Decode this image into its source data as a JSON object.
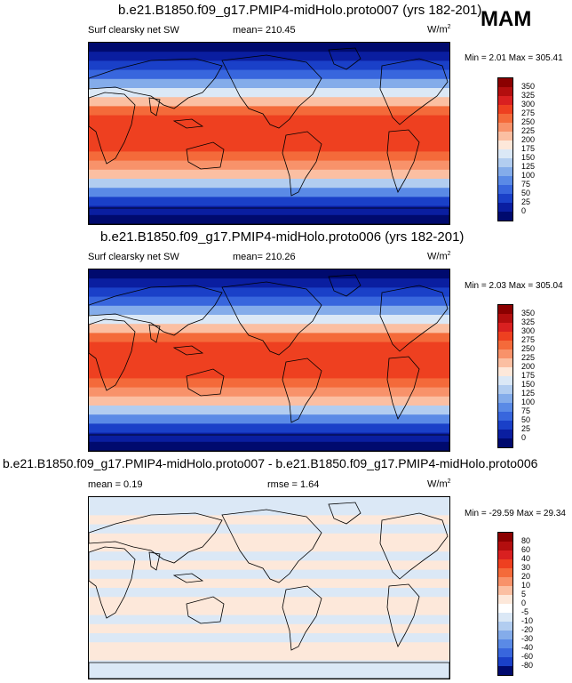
{
  "season": "MAM",
  "panels": [
    {
      "title": "b.e21.B1850.f09_g17.PMIP4-midHolo.proto007 (yrs 182-201)",
      "left_label": "Surf clearsky net SW",
      "center_label": "mean= 210.45",
      "units": "W/m",
      "units_sup": "2",
      "minmax": "Min =   2.01 Max = 305.41",
      "colorbar_ticks": [
        "350",
        "325",
        "300",
        "275",
        "250",
        "225",
        "200",
        "175",
        "150",
        "125",
        "100",
        "75",
        "50",
        "25",
        "0"
      ],
      "colorbar_colors": [
        "#8b0000",
        "#b30e0e",
        "#d92020",
        "#ee4020",
        "#f46a3a",
        "#f8926a",
        "#fbbfa2",
        "#fde8da",
        "#dbe8f6",
        "#b2cdf0",
        "#84acea",
        "#5a8ae6",
        "#3866dd",
        "#1a40c8",
        "#0a1ea0",
        "#000a6e"
      ],
      "zonal_colors": [
        "#000a6e",
        "#0a1ea0",
        "#1a40c8",
        "#3866dd",
        "#84acea",
        "#dbe8f6",
        "#fbbfa2",
        "#f46a3a",
        "#ee4020",
        "#ee4020",
        "#ee4020",
        "#ee4020",
        "#f46a3a",
        "#f8926a",
        "#fbbfa2",
        "#b2cdf0",
        "#5a8ae6",
        "#1a40c8",
        "#0a1ea0",
        "#000a6e"
      ]
    },
    {
      "title": "b.e21.B1850.f09_g17.PMIP4-midHolo.proto006 (yrs 182-201)",
      "left_label": "Surf clearsky net SW",
      "center_label": "mean= 210.26",
      "units": "W/m",
      "units_sup": "2",
      "minmax": "Min =   2.03 Max = 305.04",
      "colorbar_ticks": [
        "350",
        "325",
        "300",
        "275",
        "250",
        "225",
        "200",
        "175",
        "150",
        "125",
        "100",
        "75",
        "50",
        "25",
        "0"
      ],
      "colorbar_colors": [
        "#8b0000",
        "#b30e0e",
        "#d92020",
        "#ee4020",
        "#f46a3a",
        "#f8926a",
        "#fbbfa2",
        "#fde8da",
        "#dbe8f6",
        "#b2cdf0",
        "#84acea",
        "#5a8ae6",
        "#3866dd",
        "#1a40c8",
        "#0a1ea0",
        "#000a6e"
      ],
      "zonal_colors": [
        "#000a6e",
        "#0a1ea0",
        "#1a40c8",
        "#3866dd",
        "#84acea",
        "#dbe8f6",
        "#fbbfa2",
        "#f46a3a",
        "#ee4020",
        "#ee4020",
        "#ee4020",
        "#ee4020",
        "#f46a3a",
        "#f8926a",
        "#fbbfa2",
        "#b2cdf0",
        "#5a8ae6",
        "#1a40c8",
        "#0a1ea0",
        "#000a6e"
      ]
    },
    {
      "title": "b.e21.B1850.f09_g17.PMIP4-midHolo.proto007 - b.e21.B1850.f09_g17.PMIP4-midHolo.proto006",
      "left_label": "mean =   0.19",
      "center_label": "rmse =   1.64",
      "units": "W/m",
      "units_sup": "2",
      "minmax": "Min = -29.59 Max = 29.34",
      "colorbar_ticks": [
        "80",
        "60",
        "40",
        "30",
        "20",
        "10",
        "5",
        "0",
        "-5",
        "-10",
        "-20",
        "-30",
        "-40",
        "-60",
        "-80"
      ],
      "colorbar_colors": [
        "#8b0000",
        "#b30e0e",
        "#d92020",
        "#ee4020",
        "#f46a3a",
        "#f8926a",
        "#fbbfa2",
        "#fde8da",
        "#ffffff",
        "#dbe8f6",
        "#b2cdf0",
        "#84acea",
        "#5a8ae6",
        "#3866dd",
        "#1a40c8",
        "#000a6e"
      ],
      "zonal_colors": [
        "#dbe8f6",
        "#dbe8f6",
        "#fde8da",
        "#dbe8f6",
        "#fde8da",
        "#fde8da",
        "#dbe8f6",
        "#fde8da",
        "#dbe8f6",
        "#fde8da",
        "#dbe8f6",
        "#fde8da",
        "#fde8da",
        "#dbe8f6",
        "#fde8da",
        "#dbe8f6",
        "#fde8da",
        "#fde8da",
        "#dbe8f6",
        "#dbe8f6"
      ]
    }
  ]
}
